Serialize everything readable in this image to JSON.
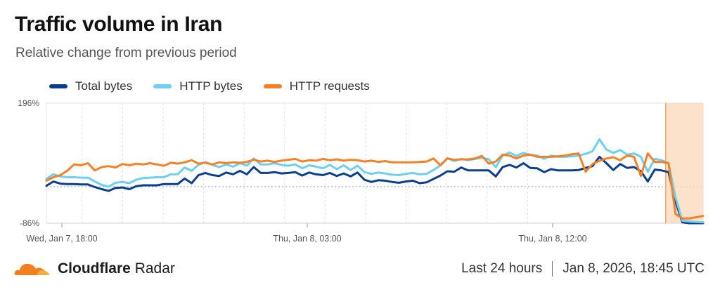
{
  "header": {
    "title": "Traffic volume in Iran",
    "subtitle": "Relative change from previous period"
  },
  "footer": {
    "brand_bold": "Cloudflare",
    "brand_rest": "Radar",
    "period": "Last 24 hours",
    "timestamp": "Jan 8, 2026, 18:45 UTC"
  },
  "chart_data": {
    "type": "line",
    "ylim": [
      -86,
      196
    ],
    "ytick_labels": [
      "196%",
      "-86%"
    ],
    "xtick_labels": [
      "Wed, Jan 7, 18:00",
      "Thu, Jan 8, 03:00",
      "Thu, Jan 8, 12:00"
    ],
    "legend_position": "top-left",
    "grid": true,
    "highlight_region": {
      "start_index": 90,
      "end_index": 96,
      "color": "#fbd8b8"
    },
    "series": [
      {
        "name": "Total bytes",
        "color": "#0a3e8f",
        "values": [
          2,
          12,
          7,
          6,
          6,
          5,
          5,
          -1,
          -6,
          -10,
          -3,
          -2,
          -6,
          1,
          3,
          3,
          3,
          6,
          6,
          6,
          19,
          8,
          27,
          32,
          27,
          25,
          33,
          29,
          37,
          29,
          46,
          32,
          32,
          34,
          31,
          32,
          34,
          26,
          33,
          29,
          27,
          32,
          25,
          31,
          24,
          33,
          16,
          11,
          15,
          14,
          11,
          9,
          12,
          14,
          8,
          10,
          18,
          26,
          36,
          35,
          45,
          38,
          38,
          38,
          38,
          24,
          46,
          51,
          45,
          55,
          44,
          43,
          34,
          41,
          38,
          38,
          38,
          39,
          44,
          48,
          70,
          55,
          39,
          53,
          44,
          46,
          36,
          12,
          40,
          38,
          34,
          -35,
          -84,
          -86,
          -86,
          -86
        ]
      },
      {
        "name": "HTTP bytes",
        "color": "#6ecff0",
        "values": [
          18,
          29,
          24,
          22,
          22,
          21,
          21,
          12,
          4,
          0,
          9,
          11,
          8,
          16,
          20,
          21,
          22,
          22,
          29,
          29,
          45,
          37,
          51,
          58,
          51,
          46,
          52,
          47,
          55,
          49,
          66,
          52,
          52,
          55,
          51,
          49,
          52,
          43,
          50,
          47,
          43,
          51,
          41,
          50,
          39,
          49,
          34,
          30,
          33,
          31,
          28,
          27,
          30,
          32,
          29,
          30,
          39,
          50,
          67,
          60,
          65,
          62,
          65,
          68,
          64,
          46,
          73,
          80,
          72,
          79,
          75,
          73,
          65,
          73,
          70,
          70,
          71,
          73,
          77,
          83,
          111,
          87,
          79,
          86,
          75,
          78,
          70,
          35,
          65,
          62,
          55,
          -25,
          -80,
          -82,
          -83,
          -84
        ]
      },
      {
        "name": "HTTP requests",
        "color": "#f58025",
        "values": [
          14,
          22,
          27,
          37,
          52,
          50,
          55,
          38,
          46,
          48,
          45,
          53,
          50,
          54,
          52,
          55,
          52,
          49,
          56,
          54,
          57,
          62,
          54,
          56,
          52,
          57,
          55,
          57,
          56,
          58,
          63,
          59,
          61,
          58,
          61,
          63,
          65,
          59,
          62,
          61,
          65,
          62,
          64,
          61,
          63,
          62,
          59,
          61,
          58,
          60,
          57,
          57,
          57,
          57,
          58,
          59,
          66,
          50,
          66,
          63,
          64,
          64,
          66,
          72,
          54,
          59,
          75,
          73,
          66,
          73,
          75,
          70,
          70,
          70,
          71,
          73,
          76,
          78,
          35,
          53,
          61,
          66,
          69,
          62,
          73,
          70,
          25,
          78,
          58,
          58,
          55,
          -64,
          -75,
          -75,
          -72,
          -69
        ]
      }
    ]
  }
}
